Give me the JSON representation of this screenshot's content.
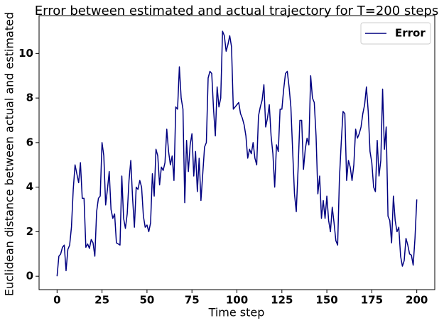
{
  "chart_data": {
    "type": "line",
    "title": "Error between estimated and actual trajectory for T=200 steps",
    "x_label": "Time step",
    "y_label": "Euclidean distance between actual and estimated",
    "x": [
      0,
      1,
      2,
      3,
      4,
      5,
      6,
      7,
      8,
      9,
      10,
      11,
      12,
      13,
      14,
      15,
      16,
      17,
      18,
      19,
      20,
      21,
      22,
      23,
      24,
      25,
      26,
      27,
      28,
      29,
      30,
      31,
      32,
      33,
      34,
      35,
      36,
      37,
      38,
      39,
      40,
      41,
      42,
      43,
      44,
      45,
      46,
      47,
      48,
      49,
      50,
      51,
      52,
      53,
      54,
      55,
      56,
      57,
      58,
      59,
      60,
      61,
      62,
      63,
      64,
      65,
      66,
      67,
      68,
      69,
      70,
      71,
      72,
      73,
      74,
      75,
      76,
      77,
      78,
      79,
      80,
      81,
      82,
      83,
      84,
      85,
      86,
      87,
      88,
      89,
      90,
      91,
      92,
      93,
      94,
      95,
      96,
      97,
      98,
      99,
      100,
      101,
      102,
      103,
      104,
      105,
      106,
      107,
      108,
      109,
      110,
      111,
      112,
      113,
      114,
      115,
      116,
      117,
      118,
      119,
      120,
      121,
      122,
      123,
      124,
      125,
      126,
      127,
      128,
      129,
      130,
      131,
      132,
      133,
      134,
      135,
      136,
      137,
      138,
      139,
      140,
      141,
      142,
      143,
      144,
      145,
      146,
      147,
      148,
      149,
      150,
      151,
      152,
      153,
      154,
      155,
      156,
      157,
      158,
      159,
      160,
      161,
      162,
      163,
      164,
      165,
      166,
      167,
      168,
      169,
      170,
      171,
      172,
      173,
      174,
      175,
      176,
      177,
      178,
      179,
      180,
      181,
      182,
      183,
      184,
      185,
      186,
      187,
      188,
      189,
      190,
      191,
      192,
      193,
      194,
      195,
      196,
      197,
      198,
      199,
      200
    ],
    "series": [
      {
        "name": "Error",
        "color": "#000080",
        "values": [
          0,
          0.9,
          1.0,
          1.3,
          1.4,
          0.25,
          1.2,
          1.4,
          2.2,
          3.9,
          5.0,
          4.6,
          4.2,
          5.1,
          3.5,
          3.5,
          1.3,
          1.45,
          1.25,
          1.65,
          1.5,
          0.9,
          2.9,
          3.5,
          3.6,
          6.0,
          5.4,
          3.2,
          3.9,
          4.7,
          3.0,
          2.6,
          2.8,
          1.5,
          1.45,
          1.4,
          4.5,
          2.6,
          2.15,
          2.8,
          4.3,
          5.2,
          3.5,
          2.2,
          4.0,
          3.9,
          4.3,
          4.0,
          2.7,
          2.2,
          2.3,
          2.0,
          2.4,
          4.6,
          3.6,
          5.7,
          5.4,
          4.1,
          4.9,
          4.75,
          5.1,
          6.6,
          5.6,
          5.0,
          5.4,
          4.3,
          7.6,
          7.5,
          9.4,
          8.0,
          7.5,
          3.3,
          6.1,
          4.7,
          5.9,
          6.4,
          4.5,
          5.6,
          3.8,
          5.3,
          3.4,
          4.6,
          5.8,
          6.0,
          8.9,
          9.2,
          9.1,
          7.5,
          6.3,
          8.5,
          7.6,
          8.0,
          11.0,
          10.8,
          10.1,
          10.4,
          10.8,
          10.3,
          7.5,
          7.6,
          7.7,
          7.8,
          7.3,
          7.1,
          6.8,
          6.3,
          5.3,
          5.7,
          5.5,
          6.0,
          5.3,
          5.0,
          7.2,
          7.6,
          7.9,
          8.6,
          6.7,
          7.1,
          7.7,
          6.3,
          5.5,
          4.0,
          5.9,
          5.6,
          7.5,
          7.5,
          8.4,
          9.1,
          9.2,
          8.5,
          7.6,
          5.6,
          3.7,
          2.9,
          4.8,
          7.0,
          7.0,
          4.8,
          5.7,
          6.2,
          5.9,
          9.0,
          8.0,
          7.8,
          6.3,
          3.7,
          4.5,
          2.6,
          3.4,
          2.6,
          3.6,
          2.5,
          2.0,
          3.1,
          2.4,
          1.6,
          1.4,
          4.4,
          6.0,
          7.4,
          7.3,
          4.3,
          5.2,
          4.9,
          4.3,
          5.0,
          6.6,
          6.2,
          6.4,
          6.7,
          7.3,
          7.7,
          8.5,
          7.4,
          5.6,
          5.1,
          4.0,
          3.8,
          6.1,
          4.5,
          5.2,
          8.4,
          5.7,
          6.7,
          2.7,
          2.5,
          1.5,
          3.6,
          2.5,
          2.0,
          2.2,
          0.9,
          0.45,
          0.7,
          1.7,
          1.4,
          1.0,
          0.95,
          0.5,
          1.7,
          3.45
        ]
      }
    ],
    "xlim": [
      -10,
      210
    ],
    "ylim": [
      -0.6,
      11.7
    ],
    "xticks": [
      0,
      25,
      50,
      75,
      100,
      125,
      150,
      175,
      200
    ],
    "yticks": [
      0,
      2,
      4,
      6,
      8,
      10
    ],
    "grid": false,
    "legend": "upper right"
  }
}
